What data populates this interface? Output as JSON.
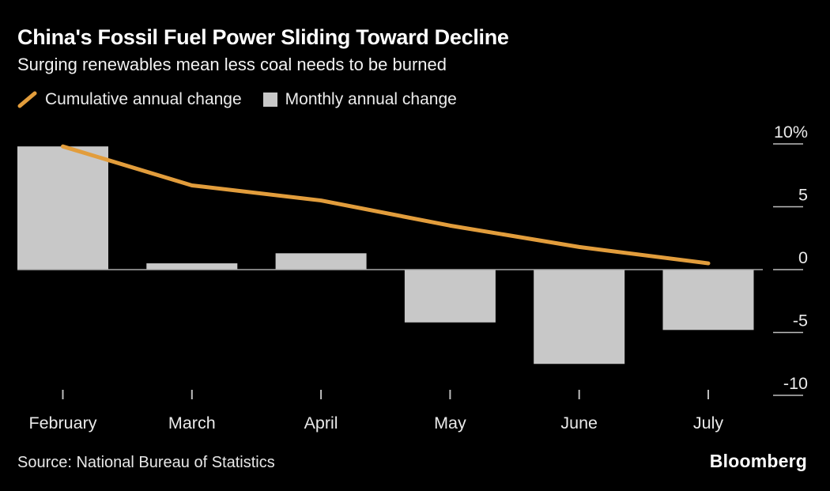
{
  "header": {
    "title": "China's Fossil Fuel Power Sliding Toward Decline",
    "subtitle": "Surging renewables mean less coal needs to be burned"
  },
  "legend": [
    {
      "label": "Cumulative annual change",
      "icon": "orange-line-swatch",
      "color": "#E29D3C"
    },
    {
      "label": "Monthly annual change",
      "icon": "gray-square-swatch",
      "color": "#C8C8C8"
    }
  ],
  "chart_data": {
    "type": "bar",
    "subtype": "bar-with-line-overlay",
    "categories": [
      "February",
      "March",
      "April",
      "May",
      "June",
      "July"
    ],
    "series": [
      {
        "name": "Cumulative annual change",
        "type": "line",
        "color": "#E29D3C",
        "values": [
          9.8,
          6.7,
          5.5,
          3.5,
          1.8,
          0.5
        ]
      },
      {
        "name": "Monthly annual change",
        "type": "bar",
        "color": "#C8C8C8",
        "values": [
          9.8,
          0.5,
          1.3,
          -4.2,
          -7.5,
          -4.8
        ]
      }
    ],
    "title": "China's Fossil Fuel Power Sliding Toward Decline",
    "xlabel": "",
    "ylabel": "",
    "y_axis": {
      "side": "right",
      "unit": "%",
      "ticks": [
        10,
        5,
        0,
        -5,
        -10
      ],
      "tick_labels": [
        "10%",
        "5",
        "0",
        "-5",
        "-10"
      ],
      "range": [
        -11.5,
        11.5
      ]
    },
    "grid": "off",
    "legend_position": "top-left"
  },
  "footer": {
    "source": "Source: National Bureau of Statistics",
    "logo": "Bloomberg"
  },
  "colors": {
    "background": "#000000",
    "title_text": "#ffffff",
    "axis_text": "#eaeaea",
    "tick_stroke": "#bdbdbd",
    "baseline_stroke": "#a9a9a9",
    "bar_fill": "#C8C8C8",
    "line_stroke": "#E29D3C"
  }
}
